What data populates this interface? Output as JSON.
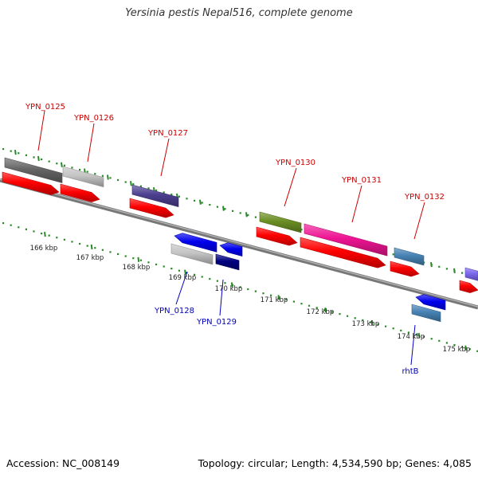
{
  "title": "Yersinia pestis Nepal516, complete genome",
  "footer": {
    "accession": "Accession: NC_008149",
    "summary": "Topology: circular; Length: 4,534,590 bp; Genes: 4,085"
  },
  "colors": {
    "forward_label": "#cc0000",
    "reverse_label": "#0000bb",
    "backbone": "#777777",
    "tick_mark": "#2a8a2a",
    "cds": "#ff0000"
  },
  "scale_labels": [
    "166 kbp",
    "167 kbp",
    "168 kbp",
    "169 kbp",
    "170 kbp",
    "171 kbp",
    "172 kbp",
    "173 kbp",
    "174 kbp",
    "175 kbp"
  ],
  "genes": [
    {
      "name": "YPN_0125",
      "strand": "forward",
      "color": "#666666"
    },
    {
      "name": "YPN_0126",
      "strand": "forward",
      "color": "#c4c4c4"
    },
    {
      "name": "YPN_0127",
      "strand": "forward",
      "color": "#4b3f8f"
    },
    {
      "name": "YPN_0128",
      "strand": "reverse",
      "color": "#c4c4c4"
    },
    {
      "name": "YPN_0129",
      "strand": "reverse",
      "color": "#000080"
    },
    {
      "name": "YPN_0130",
      "strand": "forward",
      "color": "#6b8e23"
    },
    {
      "name": "YPN_0131",
      "strand": "forward",
      "color": "#ee1493"
    },
    {
      "name": "YPN_0132",
      "strand": "forward",
      "color": "#4682b4"
    },
    {
      "name": "rhtB",
      "strand": "reverse",
      "color": "#4682b4"
    }
  ]
}
